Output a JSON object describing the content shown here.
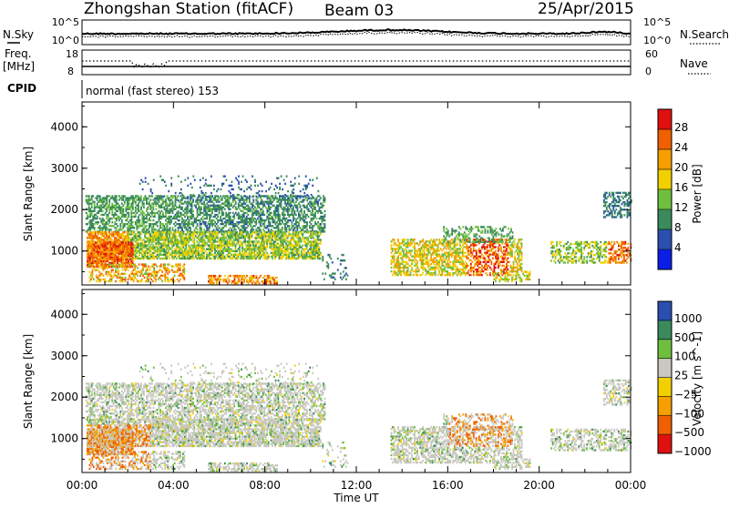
{
  "header": {
    "station": "Zhongshan Station (fitACF)",
    "beam": "Beam 03",
    "date": "25/Apr/2015"
  },
  "strips": {
    "nsky_label": "N.Sky",
    "nsearch_label": "N.Search",
    "freq_label_line1": "Freq.",
    "freq_label_line2": "[MHz]",
    "nave_label": "Nave",
    "cpid_label": "CPID",
    "cpid_value": "normal (fast stereo) 153",
    "noise_left_ticks": [
      "10^5",
      "10^0"
    ],
    "noise_right_ticks": [
      "10^5",
      "10^0"
    ],
    "freq_ticks": [
      "18",
      "8"
    ],
    "nave_ticks": [
      "60",
      "0"
    ]
  },
  "colors": {
    "power_scale": [
      "#0a1ee6",
      "#2a4fb0",
      "#3a8a5c",
      "#6fbf3f",
      "#f0d000",
      "#f5a000",
      "#f06000",
      "#e01010"
    ],
    "velocity_scale": [
      "#e01010",
      "#f06000",
      "#f5a000",
      "#f0d000",
      "#c8c8c0",
      "#6fbf3f",
      "#3a8a5c",
      "#2a4fb0"
    ]
  },
  "chart_data": [
    {
      "type": "heatmap",
      "panel": "power",
      "ylabel": "Slant Range [km]",
      "ylim": [
        180,
        4600
      ],
      "y_ticks": [
        "4000",
        "3000",
        "2000",
        "1000"
      ],
      "colorbar_label": "Power [dB]",
      "colorbar_ticks": [
        "28",
        "24",
        "20",
        "16",
        "12",
        "8",
        "4"
      ],
      "colorbar_range": [
        0,
        32
      ]
    },
    {
      "type": "heatmap",
      "panel": "velocity",
      "ylabel": "Slant Range [km]",
      "ylim": [
        180,
        4600
      ],
      "y_ticks": [
        "4000",
        "3000",
        "2000",
        "1000"
      ],
      "colorbar_label": "Velocity [m s^-1]",
      "colorbar_ticks": [
        "1000",
        "500",
        "100",
        "25",
        "−25",
        "−100",
        "−500",
        "−1000"
      ]
    }
  ],
  "x_axis": {
    "label": "Time UT",
    "ticks": [
      "00:00",
      "04:00",
      "08:00",
      "12:00",
      "16:00",
      "20:00",
      "00:00"
    ]
  }
}
